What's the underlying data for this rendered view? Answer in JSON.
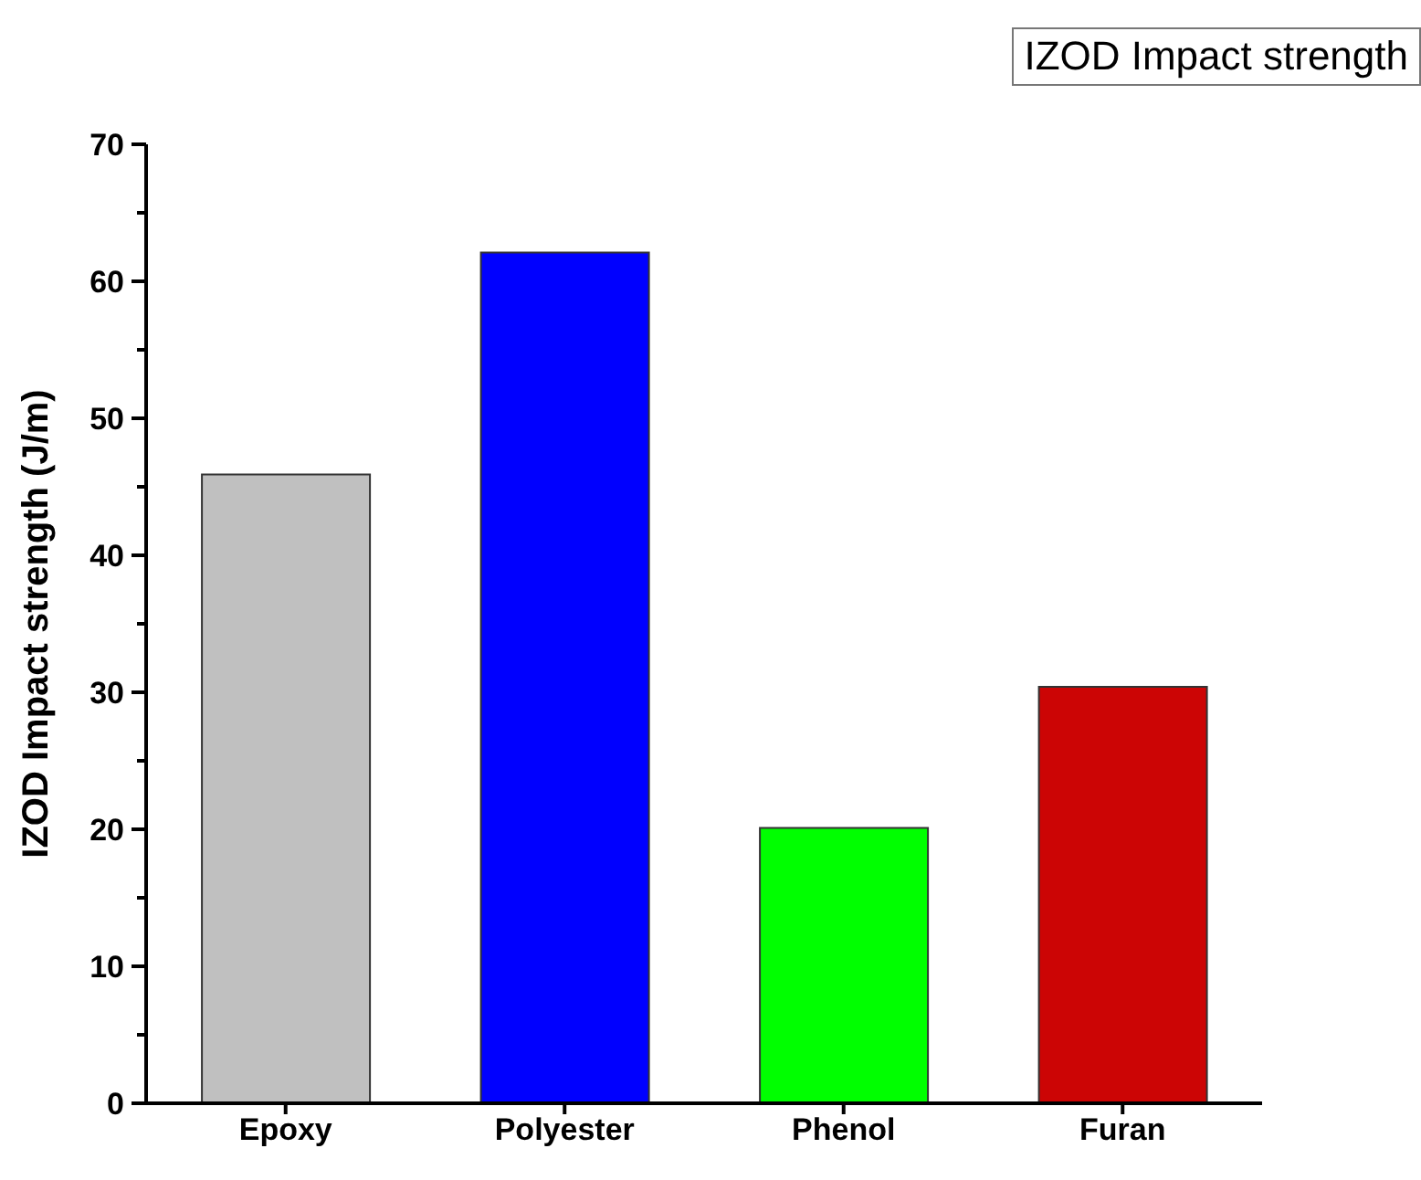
{
  "chart_data": {
    "type": "bar",
    "title": "IZOD Impact strength",
    "ylabel": "IZOD Impact strength (J/m)",
    "categories": [
      "Epoxy",
      "Polyester",
      "Phenol",
      "Furan"
    ],
    "values": [
      45.9,
      62.1,
      20.1,
      30.4
    ],
    "colors": [
      "#c0c0c0",
      "#0000ff",
      "#00ff00",
      "#cc0505"
    ],
    "ylim": [
      0,
      70
    ],
    "yticks": [
      0,
      {
        "value": 5,
        "label": null
      },
      10,
      {
        "value": 15,
        "label": null
      },
      20,
      {
        "value": 25,
        "label": null
      },
      30,
      {
        "value": 35,
        "label": null
      },
      40,
      {
        "value": 45,
        "label": null
      },
      50,
      {
        "value": 55,
        "label": null
      },
      60,
      {
        "value": 65,
        "label": null
      },
      70
    ],
    "grid": false
  }
}
